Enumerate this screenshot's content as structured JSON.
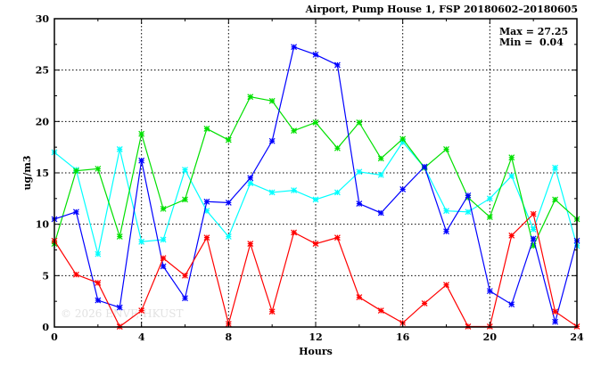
{
  "chart_data": {
    "type": "line",
    "title": "Airport, Pump House 1, FSP 20180602–20180605",
    "xlabel": "Hours",
    "ylabel": "ug/m3",
    "xlim": [
      0,
      24
    ],
    "ylim": [
      0,
      30
    ],
    "xticks": [
      "0",
      "4",
      "8",
      "12",
      "16",
      "20",
      "24"
    ],
    "yticks": [
      "0",
      "5",
      "10",
      "15",
      "20",
      "25",
      "30"
    ],
    "grid": true,
    "annotation": {
      "max_label": "Max = 27.25",
      "min_label": "Min =  0.04"
    },
    "watermark": "© 2026  ENVF, HKUST",
    "x": [
      0,
      1,
      2,
      3,
      4,
      5,
      6,
      7,
      8,
      9,
      10,
      11,
      12,
      13,
      14,
      15,
      16,
      17,
      18,
      19,
      20,
      21,
      22,
      23,
      24
    ],
    "series": [
      {
        "name": "cyan",
        "color": "#00ffff",
        "values": [
          17.0,
          15.3,
          7.1,
          17.3,
          8.3,
          8.5,
          15.3,
          11.3,
          8.8,
          14.0,
          13.1,
          13.3,
          12.4,
          13.1,
          15.1,
          14.8,
          18.0,
          15.5,
          11.3,
          11.2,
          12.5,
          14.7,
          9.5,
          15.5,
          7.9
        ]
      },
      {
        "name": "green",
        "color": "#00e000",
        "values": [
          8.1,
          15.2,
          15.4,
          8.8,
          18.8,
          11.5,
          12.4,
          19.3,
          18.2,
          22.4,
          22.0,
          19.1,
          19.9,
          17.4,
          19.9,
          16.4,
          18.3,
          15.5,
          17.3,
          12.6,
          10.7,
          16.5,
          7.9,
          12.4,
          10.5
        ]
      },
      {
        "name": "blue",
        "color": "#0000ff",
        "values": [
          10.5,
          11.2,
          2.6,
          1.9,
          16.2,
          5.9,
          2.8,
          12.2,
          12.1,
          14.5,
          18.1,
          27.25,
          26.5,
          25.5,
          12.0,
          11.1,
          13.4,
          15.6,
          9.3,
          12.8,
          3.5,
          2.2,
          8.6,
          0.5,
          8.4
        ]
      },
      {
        "name": "red",
        "color": "#ff0000",
        "values": [
          8.4,
          5.1,
          4.3,
          0.04,
          1.6,
          6.7,
          5.0,
          8.7,
          0.3,
          8.1,
          1.5,
          9.2,
          8.1,
          8.7,
          2.9,
          1.6,
          0.4,
          2.3,
          4.1,
          0.05,
          0.05,
          8.9,
          11.0,
          1.5,
          0.05
        ]
      }
    ]
  }
}
